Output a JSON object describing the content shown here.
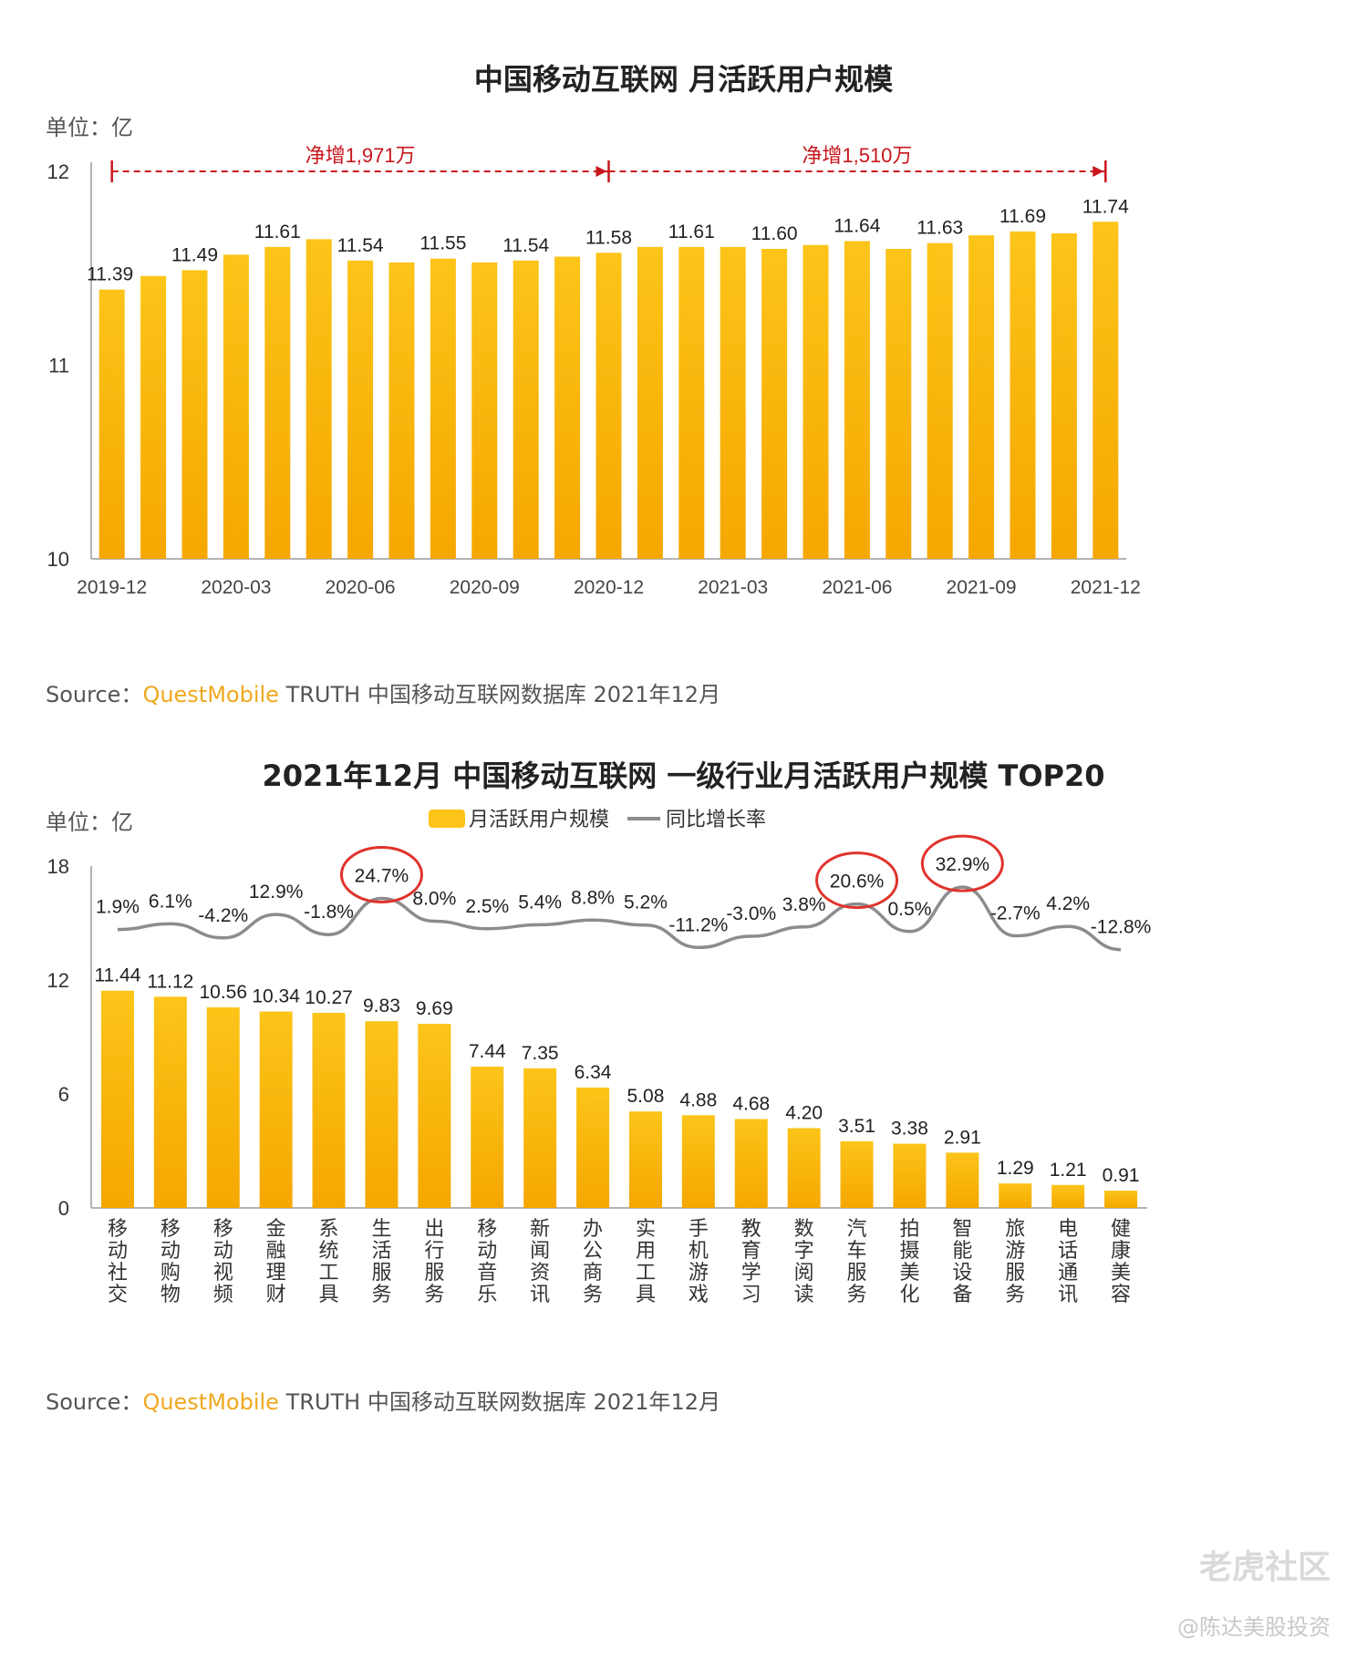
{
  "chart1": {
    "title": "中国移动互联网 月活跃用户规模",
    "unit": "单位：亿",
    "annotations": [
      "净增1,971万",
      "净增1,510万"
    ],
    "source_prefix": "Source：",
    "source_brand": "QuestMobile",
    "source_rest": " TRUTH 中国移动互联网数据库 2021年12月"
  },
  "chart2": {
    "title": "2021年12月 中国移动互联网 一级行业月活跃用户规模 TOP20",
    "unit": "单位：亿",
    "source_prefix": "Source：",
    "source_brand": "QuestMobile",
    "source_rest": " TRUTH 中国移动互联网数据库 2021年12月"
  },
  "watermark": "老虎社区",
  "credit": "@陈达美股投资",
  "colors": {
    "bar": "#fcc419",
    "bar_dark": "#f5a700",
    "line": "#8c8c8c",
    "annotation": "#c8161d",
    "highlight_circle": "#e0332c"
  },
  "chart_data": [
    {
      "type": "bar",
      "title": "中国移动互联网 月活跃用户规模",
      "ylabel": "单位：亿",
      "ylim": [
        10,
        12
      ],
      "yticks": [
        10,
        11,
        12
      ],
      "x": [
        "2019-12",
        "2020-01",
        "2020-02",
        "2020-03",
        "2020-04",
        "2020-05",
        "2020-06",
        "2020-07",
        "2020-08",
        "2020-09",
        "2020-10",
        "2020-11",
        "2020-12",
        "2021-01",
        "2021-02",
        "2021-03",
        "2021-04",
        "2021-05",
        "2021-06",
        "2021-07",
        "2021-08",
        "2021-09",
        "2021-10",
        "2021-11",
        "2021-12"
      ],
      "xtick_labels": [
        "2019-12",
        "2020-03",
        "2020-06",
        "2020-09",
        "2020-12",
        "2021-03",
        "2021-06",
        "2021-09",
        "2021-12"
      ],
      "values": [
        11.39,
        11.46,
        11.49,
        11.57,
        11.61,
        11.65,
        11.54,
        11.53,
        11.55,
        11.53,
        11.54,
        11.56,
        11.58,
        11.61,
        11.61,
        11.61,
        11.6,
        11.62,
        11.64,
        11.6,
        11.63,
        11.67,
        11.69,
        11.68,
        11.74
      ],
      "data_labels": {
        "0": "11.39",
        "2": "11.49",
        "4": "11.61",
        "6": "11.54",
        "8": "11.55",
        "10": "11.54",
        "12": "11.58",
        "14": "11.61",
        "16": "11.60",
        "18": "11.64",
        "20": "11.63",
        "22": "11.69",
        "24": "11.74"
      }
    },
    {
      "type": "bar",
      "title": "2021年12月 中国移动互联网 一级行业月活跃用户规模 TOP20",
      "ylabel": "单位：亿",
      "ylim": [
        0,
        18
      ],
      "yticks": [
        0,
        6,
        12,
        18
      ],
      "categories": [
        "移动社交",
        "移动购物",
        "移动视频",
        "金融理财",
        "系统工具",
        "生活服务",
        "出行服务",
        "移动音乐",
        "新闻资讯",
        "办公商务",
        "实用工具",
        "手机游戏",
        "教育学习",
        "数字阅读",
        "汽车服务",
        "拍摄美化",
        "智能设备",
        "旅游服务",
        "电话通讯",
        "健康美容"
      ],
      "series": [
        {
          "name": "月活跃用户规模",
          "values": [
            11.44,
            11.12,
            10.56,
            10.34,
            10.27,
            9.83,
            9.69,
            7.44,
            7.35,
            6.34,
            5.08,
            4.88,
            4.68,
            4.2,
            3.51,
            3.38,
            2.91,
            1.29,
            1.21,
            0.91
          ]
        },
        {
          "name": "同比增长率",
          "type": "line",
          "values": [
            1.9,
            6.1,
            -4.2,
            12.9,
            -1.8,
            24.7,
            8.0,
            2.5,
            5.4,
            8.8,
            5.2,
            -11.2,
            -3.0,
            3.8,
            20.6,
            0.5,
            32.9,
            -2.7,
            4.2,
            -12.8
          ],
          "labels": [
            "1.9%",
            "6.1%",
            "-4.2%",
            "12.9%",
            "-1.8%",
            "24.7%",
            "8.0%",
            "2.5%",
            "5.4%",
            "8.8%",
            "5.2%",
            "-11.2%",
            "-3.0%",
            "3.8%",
            "20.6%",
            "0.5%",
            "32.9%",
            "-2.7%",
            "4.2%",
            "-12.8%"
          ]
        }
      ],
      "highlighted": [
        "24.7%",
        "20.6%",
        "32.9%"
      ],
      "legend": "top-center"
    }
  ]
}
